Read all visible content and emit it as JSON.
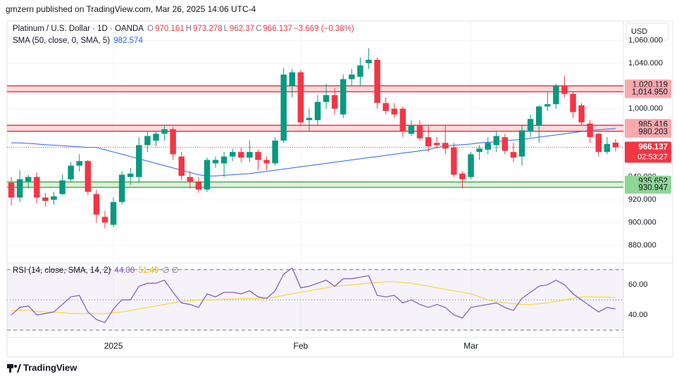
{
  "header": {
    "published": "gmzern published on TradingView.com, Mar 26, 2025 14:06 UTC-4",
    "currency": "USD",
    "countdown": "02:53:27"
  },
  "footer": {
    "brand": "TradingView"
  },
  "chart_data": [
    {
      "type": "candlestick",
      "title": "Platinum / U.S. Dollar · 1D · OANDA",
      "ohlc_prefix": [
        "O",
        "H",
        "L",
        "C"
      ],
      "change": "−3.669 (−0.38%)",
      "up_color": "#089981",
      "down_color": "#f23645",
      "categories": [
        null,
        null,
        null,
        null,
        null,
        null,
        null,
        null,
        null,
        null,
        null,
        null,
        "2025",
        null,
        null,
        null,
        null,
        null,
        null,
        null,
        null,
        null,
        null,
        null,
        null,
        null,
        null,
        null,
        null,
        null,
        null,
        null,
        null,
        null,
        "Feb",
        null,
        null,
        null,
        null,
        null,
        null,
        null,
        null,
        null,
        null,
        null,
        null,
        null,
        null,
        null,
        null,
        null,
        null,
        null,
        "Mar",
        null,
        null,
        null,
        null,
        null,
        null,
        null,
        null,
        null,
        null,
        null,
        null,
        null,
        null,
        null,
        null,
        null
      ],
      "open": [
        935,
        922,
        936,
        940,
        922,
        920,
        925,
        938,
        950,
        954,
        925,
        905,
        898,
        918,
        940,
        940,
        968,
        972,
        978,
        982,
        958,
        940,
        936,
        929,
        952,
        952,
        958,
        962,
        957,
        962,
        955,
        952,
        972,
        1020,
        1032,
        990,
        990,
        1006,
        1012,
        995,
        1026,
        1028,
        1040,
        1043,
        1005,
        1000,
        1000,
        978,
        985,
        975,
        970,
        970,
        966,
        943,
        940,
        962,
        964,
        968,
        975,
        962,
        958,
        980,
        985,
        1002,
        1004,
        1020,
        1013,
        1003,
        987,
        978,
        962,
        970.161
      ],
      "high": [
        940,
        946,
        942,
        944,
        926,
        927,
        942,
        953,
        960,
        955,
        929,
        910,
        922,
        945,
        948,
        975,
        980,
        980,
        986,
        984,
        962,
        945,
        940,
        957,
        958,
        962,
        965,
        966,
        972,
        964,
        958,
        975,
        1036,
        1035,
        1034,
        1000,
        1012,
        1022,
        1018,
        1030,
        1035,
        1045,
        1053,
        1045,
        1010,
        1005,
        1002,
        990,
        990,
        985,
        975,
        985,
        970,
        945,
        962,
        968,
        975,
        980,
        978,
        970,
        985,
        995,
        1003,
        1015,
        1022,
        1029,
        1015,
        1005,
        990,
        979,
        975,
        973.278
      ],
      "low": [
        915,
        918,
        930,
        917,
        914,
        916,
        924,
        936,
        945,
        924,
        900,
        895,
        896,
        916,
        933,
        935,
        962,
        967,
        972,
        955,
        937,
        930,
        926,
        927,
        948,
        940,
        954,
        953,
        953,
        946,
        946,
        950,
        970,
        1010,
        985,
        980,
        985,
        1000,
        995,
        992,
        1020,
        1020,
        1035,
        1000,
        995,
        992,
        975,
        976,
        972,
        962,
        965,
        960,
        940,
        930,
        938,
        955,
        960,
        962,
        960,
        953,
        950,
        975,
        970,
        998,
        1000,
        1010,
        992,
        985,
        970,
        958,
        960,
        962.37
      ],
      "close": [
        922,
        938,
        940,
        922,
        919,
        923,
        937,
        950,
        954,
        927,
        907,
        900,
        918,
        942,
        943,
        968,
        976,
        978,
        982,
        960,
        941,
        936,
        929,
        955,
        955,
        958,
        962,
        957,
        962,
        955,
        952,
        972,
        1030,
        1032,
        988,
        992,
        1006,
        1012,
        1000,
        1026,
        1030,
        1038,
        1043,
        1005,
        998,
        995,
        980,
        985,
        974,
        967,
        968,
        965,
        942,
        938,
        960,
        965,
        970,
        976,
        963,
        957,
        981,
        991,
        1002,
        1004,
        1020,
        1013,
        997,
        988,
        975,
        962,
        969,
        966.137
      ],
      "overlays": [
        {
          "name": "SMA (50, close, 0, SMA, 5)",
          "color": "#2962ff",
          "values": [
            970,
            970,
            969.5,
            969,
            968.5,
            968,
            967.5,
            967,
            966.5,
            966,
            966,
            964,
            962,
            960,
            958,
            956,
            954,
            952,
            950,
            948,
            946,
            944,
            942,
            941,
            941,
            941.5,
            942,
            942.5,
            943,
            944,
            945,
            946,
            947,
            948,
            949,
            950,
            951,
            952,
            953,
            954,
            955,
            956,
            957,
            958,
            959,
            960,
            961,
            962,
            963,
            964,
            966,
            967,
            968,
            968.5,
            969,
            970,
            970.5,
            971,
            972,
            972.5,
            973,
            974,
            975,
            976,
            977,
            978,
            979,
            980,
            981,
            981.5,
            982,
            982.574
          ]
        }
      ],
      "levels": [
        {
          "upper": {
            "value": 1020.119,
            "label": "1,020.119"
          },
          "lower": {
            "value": 1014.95,
            "label": "1,014.950"
          },
          "color": "#f23645"
        },
        {
          "upper": {
            "value": 985.416,
            "label": "985.416"
          },
          "lower": {
            "value": 980.203,
            "label": "980.203"
          },
          "color": "#f23645"
        },
        {
          "upper": {
            "value": 935.652,
            "label": "935.652"
          },
          "lower": {
            "value": 930.947,
            "label": "930.947"
          },
          "color": "#4caf50"
        }
      ],
      "ylim": [
        867,
        1077
      ],
      "yticks": [
        {
          "value": 880,
          "label": "880.000"
        },
        {
          "value": 900,
          "label": "900.000"
        },
        {
          "value": 920,
          "label": "920.000"
        },
        {
          "value": 940,
          "label": "940.000"
        },
        {
          "value": 1000,
          "label": "1,000.000"
        },
        {
          "value": 1040,
          "label": "1,040.000"
        },
        {
          "value": 1060,
          "label": "1,060.000"
        }
      ],
      "grid": true
    },
    {
      "type": "line",
      "series": [
        {
          "name": "RSI (14, close, SMA, 14, 2)",
          "color": "#7e57c2",
          "values": [
            40,
            45,
            46,
            40,
            41,
            42,
            47,
            52,
            53,
            42,
            37,
            35,
            44,
            50,
            50,
            59,
            61,
            61,
            63,
            55,
            48,
            47,
            45,
            54,
            52,
            55,
            55,
            54,
            56,
            52,
            51,
            56,
            67,
            71,
            58,
            59,
            61,
            63,
            59,
            64,
            64,
            65,
            66,
            53,
            52,
            53,
            48,
            50,
            47,
            45,
            47,
            45,
            40,
            38,
            45,
            46,
            47,
            48,
            45,
            43,
            51,
            55,
            59,
            60,
            63,
            60,
            54,
            50,
            46,
            42,
            45,
            44.08
          ]
        },
        {
          "color": "#f5d742",
          "values": [
            43,
            43,
            43,
            42.5,
            42,
            42,
            41.5,
            41,
            41,
            41,
            41,
            41,
            41.5,
            42,
            43,
            44,
            45,
            46,
            47,
            48,
            49,
            49.5,
            50,
            50,
            50,
            50.5,
            50.5,
            51,
            51,
            51,
            51,
            52,
            53,
            54,
            55,
            56,
            57,
            58,
            59,
            59.5,
            60,
            60.5,
            61,
            61.5,
            62,
            62,
            61.5,
            61,
            60,
            59,
            58,
            57,
            56,
            55,
            54,
            52,
            50,
            49,
            48,
            47.5,
            47,
            47,
            47.5,
            48,
            49,
            50,
            51,
            52,
            52,
            52,
            51.8,
            51.49
          ]
        }
      ],
      "extra": "∅ ∅",
      "hlines": [
        70,
        50,
        30
      ],
      "ylim": [
        26.1,
        72.6
      ],
      "yticks": [
        {
          "value": 40,
          "label": "40.00"
        },
        {
          "value": 60,
          "label": "60.00"
        }
      ]
    }
  ]
}
